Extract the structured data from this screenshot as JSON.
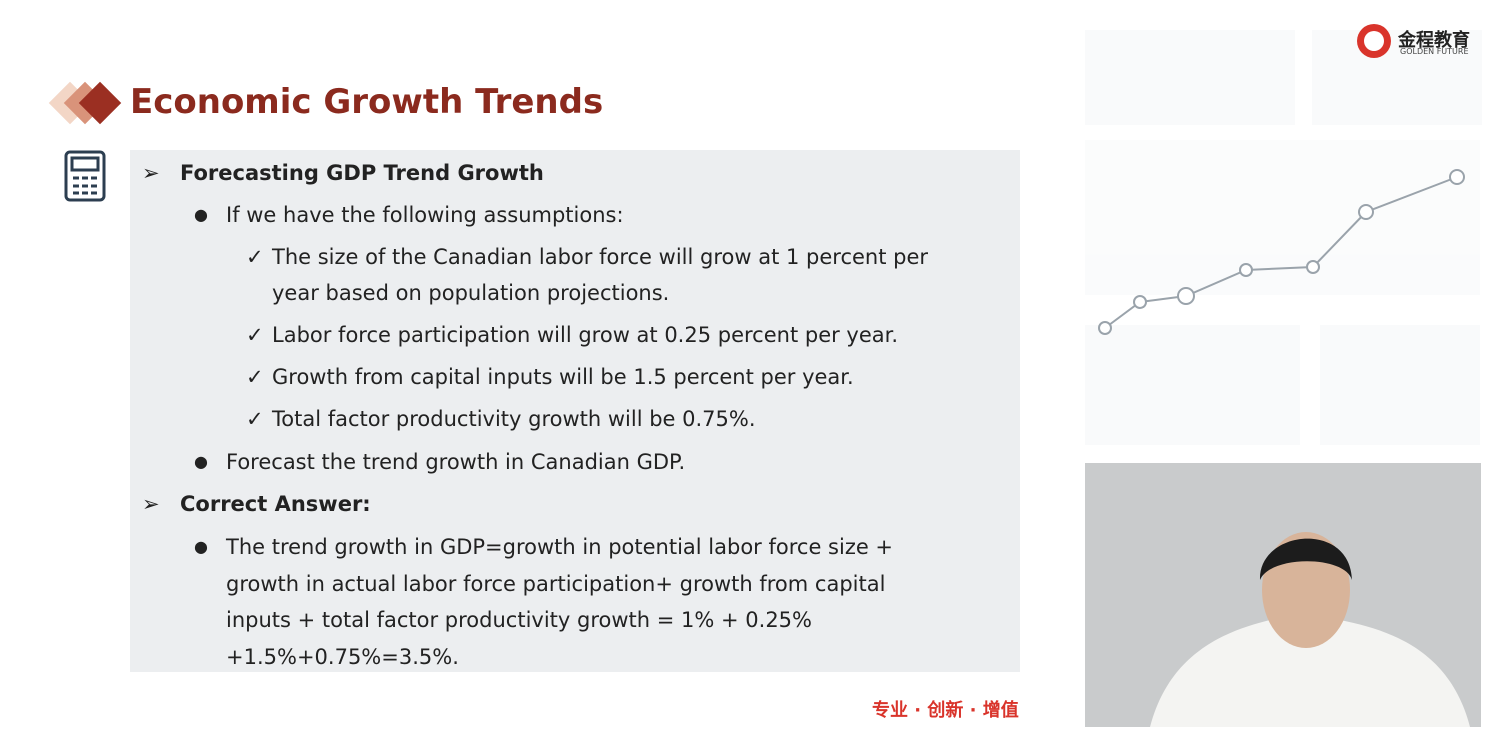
{
  "header": {
    "title": "Economic Growth Trends",
    "logo_cn": "金程教育",
    "logo_en": "GOLDEN FUTURE"
  },
  "question": {
    "heading": "Forecasting GDP Trend Growth",
    "intro": "If we have the following assumptions:",
    "assumptions": [
      {
        "lines": [
          "The size of the Canadian labor force will grow at 1 percent per",
          "year based on population projections."
        ]
      },
      {
        "lines": [
          "Labor force participation will grow at 0.25 percent per year."
        ]
      },
      {
        "lines": [
          "Growth from capital inputs will be 1.5 percent per year."
        ]
      },
      {
        "lines": [
          "Total factor productivity growth will be 0.75%."
        ]
      }
    ],
    "task": "Forecast the trend growth in Canadian GDP."
  },
  "answer": {
    "heading": "Correct Answer:",
    "lines": [
      "The trend growth in GDP=growth in potential labor force size +",
      "growth in actual labor force participation+ growth from capital",
      "inputs + total factor productivity growth = 1% + 0.25%",
      "+1.5%+0.75%=3.5%."
    ]
  },
  "footer": "专业 · 创新 · 增值"
}
